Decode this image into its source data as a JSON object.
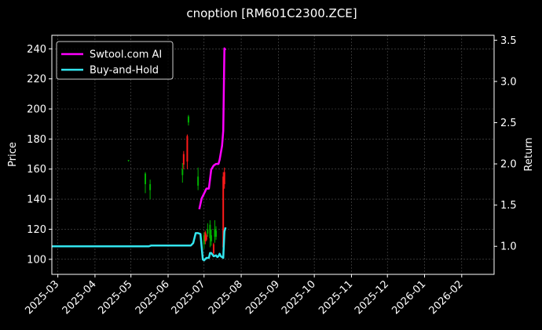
{
  "chart_data": {
    "type": "line",
    "title": "cnoption [RM601C2300.ZCE]",
    "ylabel_left": "Price",
    "ylabel_right": "Return",
    "x_ticks": [
      "2025-03",
      "2025-04",
      "2025-05",
      "2025-06",
      "2025-07",
      "2025-08",
      "2025-09",
      "2025-10",
      "2025-11",
      "2025-12",
      "2026-01",
      "2026-02"
    ],
    "y_left_ticks": [
      100,
      120,
      140,
      160,
      180,
      200,
      220,
      240
    ],
    "y_right_ticks": [
      "1.0",
      "1.5",
      "2.0",
      "2.5",
      "3.0",
      "3.5"
    ],
    "xlim": [
      "2025-02-24",
      "2026-02-28"
    ],
    "ylim_left": [
      90,
      249
    ],
    "ylim_right": [
      0.66,
      3.56
    ],
    "grid": true,
    "legend": {
      "placement": "top-left",
      "entries": [
        {
          "label": "Swtool.com AI",
          "color": "#ff00ff"
        },
        {
          "label": "Buy-and-Hold",
          "color": "#33e5ee"
        }
      ]
    },
    "series": [
      {
        "name": "Swtool.com AI",
        "color": "#ff00ff",
        "axis": "right",
        "points": [
          [
            "2025-06-27",
            1.45
          ],
          [
            "2025-06-29",
            1.58
          ],
          [
            "2025-07-01",
            1.64
          ],
          [
            "2025-07-03",
            1.7
          ],
          [
            "2025-07-05",
            1.7
          ],
          [
            "2025-07-07",
            1.93
          ],
          [
            "2025-07-09",
            1.98
          ],
          [
            "2025-07-11",
            2.0
          ],
          [
            "2025-07-13",
            2.0
          ],
          [
            "2025-07-14",
            2.05
          ],
          [
            "2025-07-16",
            2.22
          ],
          [
            "2025-07-17",
            2.4
          ],
          [
            "2025-07-18",
            3.4
          ],
          [
            "2025-07-19",
            3.38
          ]
        ]
      },
      {
        "name": "Buy-and-Hold",
        "color": "#33e5ee",
        "axis": "right",
        "points": [
          [
            "2025-02-24",
            1.0
          ],
          [
            "2025-05-16",
            1.0
          ],
          [
            "2025-05-18",
            1.01
          ],
          [
            "2025-06-20",
            1.01
          ],
          [
            "2025-06-22",
            1.04
          ],
          [
            "2025-06-24",
            1.16
          ],
          [
            "2025-06-26",
            1.16
          ],
          [
            "2025-06-28",
            1.15
          ],
          [
            "2025-06-30",
            0.84
          ],
          [
            "2025-07-01",
            0.83
          ],
          [
            "2025-07-03",
            0.86
          ],
          [
            "2025-07-05",
            0.86
          ],
          [
            "2025-07-06",
            0.92
          ],
          [
            "2025-07-07",
            0.92
          ],
          [
            "2025-07-09",
            0.88
          ],
          [
            "2025-07-11",
            0.89
          ],
          [
            "2025-07-12",
            0.87
          ],
          [
            "2025-07-13",
            0.88
          ],
          [
            "2025-07-14",
            0.91
          ],
          [
            "2025-07-15",
            0.88
          ],
          [
            "2025-07-16",
            0.87
          ],
          [
            "2025-07-17",
            0.86
          ],
          [
            "2025-07-18",
            1.18
          ],
          [
            "2025-07-19",
            1.23
          ]
        ]
      }
    ],
    "candles": [
      {
        "date": "2025-04-29",
        "open": 166,
        "close": 166,
        "high": 166,
        "low": 165,
        "color": "#00b000"
      },
      {
        "date": "2025-05-13",
        "open": 157,
        "close": 150,
        "high": 158,
        "low": 144,
        "color": "#00b000"
      },
      {
        "date": "2025-05-17",
        "open": 150,
        "close": 146,
        "high": 153,
        "low": 140,
        "color": "#00b000"
      },
      {
        "date": "2025-06-13",
        "open": 160,
        "close": 156,
        "high": 164,
        "low": 151,
        "color": "#00b000"
      },
      {
        "date": "2025-06-14",
        "open": 163,
        "close": 170,
        "high": 172,
        "low": 160,
        "color": "#ff1a1a"
      },
      {
        "date": "2025-06-17",
        "open": 165,
        "close": 182,
        "high": 183,
        "low": 160,
        "color": "#ff1a1a"
      },
      {
        "date": "2025-06-18",
        "open": 195,
        "close": 191,
        "high": 196,
        "low": 189,
        "color": "#00b000"
      },
      {
        "date": "2025-06-26",
        "open": 155,
        "close": 149,
        "high": 161,
        "low": 146,
        "color": "#00b000"
      },
      {
        "date": "2025-07-01",
        "open": 116,
        "close": 110,
        "high": 118,
        "low": 107,
        "color": "#00b000"
      },
      {
        "date": "2025-07-02",
        "open": 112,
        "close": 118,
        "high": 119,
        "low": 110,
        "color": "#ff1a1a"
      },
      {
        "date": "2025-07-03",
        "open": 113,
        "close": 116,
        "high": 117,
        "low": 112,
        "color": "#ff1a1a"
      },
      {
        "date": "2025-07-04",
        "open": 120,
        "close": 117,
        "high": 124,
        "low": 115,
        "color": "#00b000"
      },
      {
        "date": "2025-07-06",
        "open": 123,
        "close": 114,
        "high": 126,
        "low": 108,
        "color": "#00b000"
      },
      {
        "date": "2025-07-07",
        "open": 116,
        "close": 112,
        "high": 120,
        "low": 109,
        "color": "#00b000"
      },
      {
        "date": "2025-07-09",
        "open": 104,
        "close": 110,
        "high": 111,
        "low": 102,
        "color": "#ff1a1a"
      },
      {
        "date": "2025-07-10",
        "open": 120,
        "close": 115,
        "high": 126,
        "low": 111,
        "color": "#00b000"
      },
      {
        "date": "2025-07-11",
        "open": 119,
        "close": 115,
        "high": 122,
        "low": 113,
        "color": "#00b000"
      },
      {
        "date": "2025-07-17",
        "open": 108,
        "close": 155,
        "high": 158,
        "low": 105,
        "color": "#ff1a1a"
      },
      {
        "date": "2025-07-18",
        "open": 150,
        "close": 158,
        "high": 161,
        "low": 147,
        "color": "#ff1a1a"
      }
    ]
  }
}
